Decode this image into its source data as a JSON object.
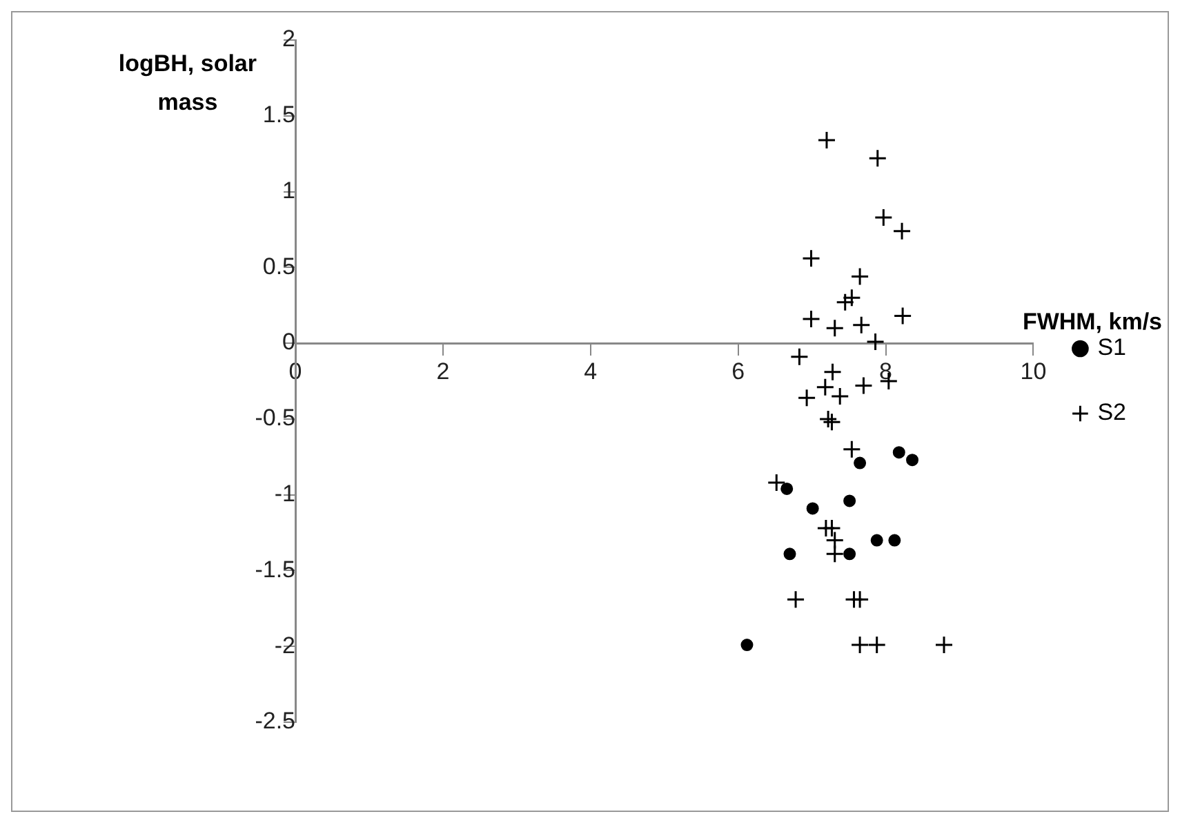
{
  "chart_data": {
    "type": "scatter",
    "xlabel": "FWHM, km/s",
    "ylabel": "logBH, solar mass",
    "xlim": [
      0,
      10
    ],
    "xticks": [
      0,
      2,
      4,
      6,
      8,
      10
    ],
    "ylim": [
      -2.5,
      2
    ],
    "yticks": [
      -2.5,
      -2,
      -1.5,
      -1,
      -0.5,
      0,
      0.5,
      1,
      1.5,
      2
    ],
    "grid": false,
    "legend": "right",
    "series": [
      {
        "name": "S1",
        "color": "#000000",
        "marker": "circle",
        "x": [
          7.65,
          8.18,
          8.36,
          6.66,
          7.01,
          7.51,
          7.88,
          8.12,
          6.7,
          7.51,
          6.12
        ],
        "values": [
          -0.79,
          -0.72,
          -0.77,
          -0.96,
          -1.09,
          -1.04,
          -1.3,
          -1.3,
          -1.39,
          -1.39,
          -1.99
        ]
      },
      {
        "name": "S2",
        "color": "#000000",
        "marker": "cross",
        "x": [
          7.2,
          7.89,
          7.97,
          8.22,
          6.99,
          7.65,
          7.54,
          7.45,
          6.99,
          7.31,
          7.67,
          8.23,
          7.86,
          6.83,
          7.28,
          7.18,
          6.93,
          7.38,
          7.7,
          8.04,
          7.22,
          7.27,
          7.54,
          6.52,
          7.19,
          7.27,
          7.31,
          7.31,
          6.78,
          7.57,
          7.65,
          7.65,
          7.88,
          8.79
        ],
        "values": [
          1.34,
          1.22,
          0.83,
          0.74,
          0.56,
          0.44,
          0.3,
          0.27,
          0.16,
          0.1,
          0.12,
          0.18,
          0.01,
          -0.09,
          -0.19,
          -0.29,
          -0.36,
          -0.35,
          -0.28,
          -0.25,
          -0.5,
          -0.52,
          -0.7,
          -0.92,
          -1.22,
          -1.22,
          -1.3,
          -1.39,
          -1.69,
          -1.69,
          -1.69,
          -1.99,
          -1.99,
          -1.99
        ]
      }
    ]
  }
}
